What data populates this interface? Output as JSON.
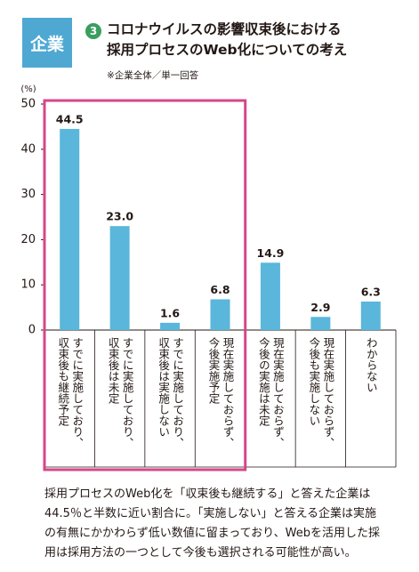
{
  "chart_data": {
    "type": "bar",
    "badge": "企業",
    "title_number": "3",
    "title": "コロナウイルスの影響収束後における\n採用プロセスのWeb化についての考え",
    "subtitle": "※企業全体／単一回答",
    "ylabel": "(%)",
    "categories": [
      "すでに実施しており、\n収束後も継続予定",
      "すでに実施しており、\n収束後は未定",
      "すでに実施しており、\n収束後は実施しない",
      "現在実施しておらず、\n今後実施予定",
      "現在実施しておらず、\n今後の実施は未定",
      "現在実施しておらず、\n今後も実施しない",
      "わからない"
    ],
    "values": [
      44.5,
      23.0,
      1.6,
      6.8,
      14.9,
      2.9,
      6.3
    ],
    "value_labels": [
      "44.5",
      "23.0",
      "1.6",
      "6.8",
      "14.9",
      "2.9",
      "6.3"
    ],
    "color": "#5ab6da",
    "highlight_color": "#d5478a",
    "ylim": [
      0,
      50
    ],
    "yticks": [
      0,
      10,
      20,
      30,
      40,
      50
    ],
    "caption": "採用プロセスのWeb化を「収束後も継続する」と答えた企業は\n44.5％と半数に近い割合に。「実施しない」と答える企業は実施\nの有無にかかわらず低い数値に留まっており、Webを活用した採\n用は採用方法の一つとして今後も選択される可能性が高い。"
  }
}
